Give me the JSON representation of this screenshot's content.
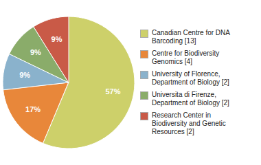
{
  "chart_data": {
    "type": "pie",
    "categories": [
      "Canadian Centre for DNA\nBarcoding [13]",
      "Centre for Biodiversity\nGenomics [4]",
      "University of Florence,\nDepartment of Biology [2]",
      "Universita di Firenze,\nDepartment of Biology [2]",
      "Research Center in\nBiodiversity and Genetic\nResources [2]"
    ],
    "values": [
      57,
      17,
      9,
      9,
      9
    ],
    "value_labels": [
      "57%",
      "17%",
      "9%",
      "9%",
      "9%"
    ],
    "colors": [
      "#cdd06a",
      "#e8873a",
      "#8ab2cc",
      "#8aac6a",
      "#c95a47"
    ],
    "data_labels": true,
    "legend": "right"
  }
}
